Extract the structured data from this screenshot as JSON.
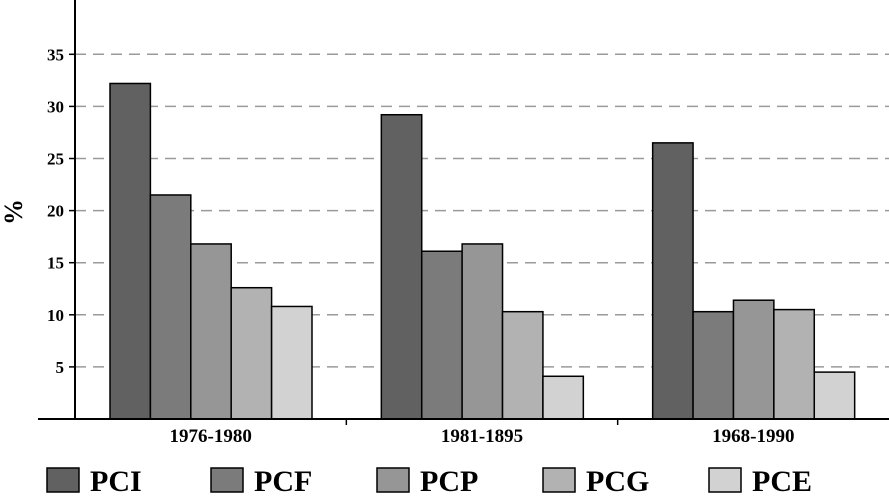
{
  "chart_data": {
    "type": "bar",
    "title": "",
    "xlabel": "",
    "ylabel": "%",
    "ylim": [
      0,
      40
    ],
    "yticks": [
      5,
      10,
      15,
      20,
      25,
      30,
      35
    ],
    "grid": "horizontal-dashed",
    "legend_position": "bottom",
    "categories": [
      "1976-1980",
      "1981-1895",
      "1968-1990"
    ],
    "series": [
      {
        "name": "PCI",
        "color": "#616161",
        "values": [
          32.2,
          29.2,
          26.5
        ]
      },
      {
        "name": "PCF",
        "color": "#7b7b7b",
        "values": [
          21.5,
          16.1,
          10.3
        ]
      },
      {
        "name": "PCP",
        "color": "#969696",
        "values": [
          16.8,
          16.8,
          11.4
        ]
      },
      {
        "name": "PCG",
        "color": "#b2b2b2",
        "values": [
          12.6,
          10.3,
          10.5
        ]
      },
      {
        "name": "PCE",
        "color": "#d2d2d2",
        "values": [
          10.8,
          4.1,
          4.5
        ]
      }
    ]
  }
}
